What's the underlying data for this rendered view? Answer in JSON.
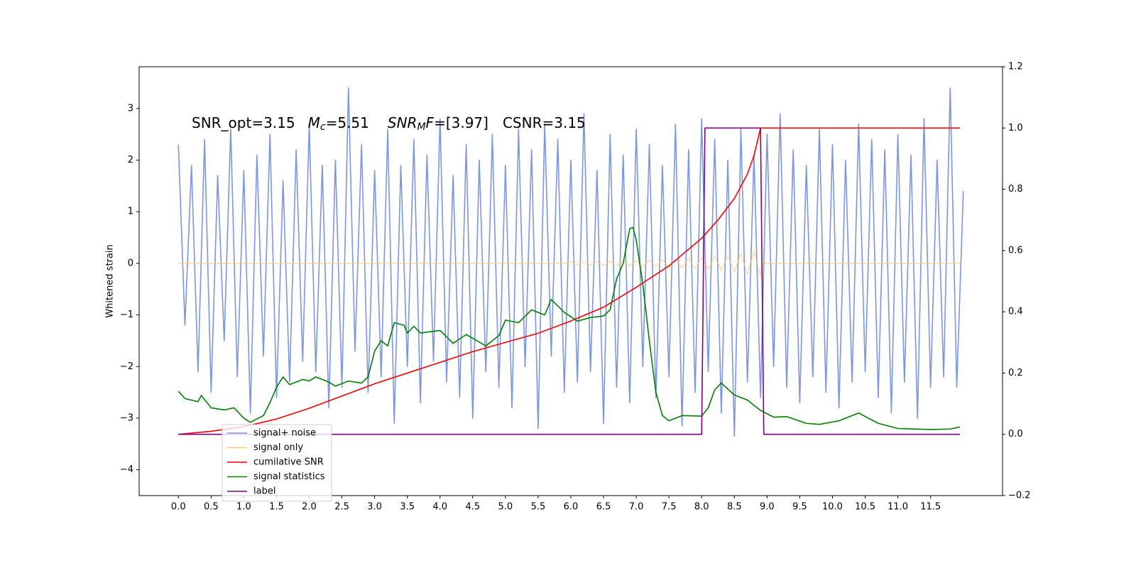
{
  "chart_data": {
    "type": "line",
    "annotation": [
      "SNR_opt=3.15",
      "M",
      "c",
      "=5.51",
      "SNR",
      "M",
      "F",
      "=[3.97]",
      "CSNR=3.15"
    ],
    "ylabel": "Whitened strain",
    "xlim": [
      -0.6,
      12.6
    ],
    "ylim": [
      -4.5,
      3.81
    ],
    "y2lim": [
      -0.2,
      1.2
    ],
    "xticks": [
      {
        "value": 0,
        "label": "0.0"
      },
      0.5,
      {
        "value": 1,
        "label": "1.0"
      },
      1.5,
      {
        "value": 2,
        "label": "2.0"
      },
      2.5,
      {
        "value": 3,
        "label": "3.0"
      },
      3.5,
      {
        "value": 4,
        "label": "4.0"
      },
      4.5,
      {
        "value": 5,
        "label": "5.0"
      },
      5.5,
      {
        "value": 6,
        "label": "6.0"
      },
      6.5,
      {
        "value": 7,
        "label": "7.0"
      },
      7.5,
      {
        "value": 8,
        "label": "8.0"
      },
      8.5,
      {
        "value": 9,
        "label": "9.0"
      },
      9.5,
      {
        "value": 10,
        "label": "10.0"
      },
      10.5,
      {
        "value": 11,
        "label": "11.0"
      },
      11.5
    ],
    "yticks": [
      {
        "value": -4,
        "label": "−4"
      },
      {
        "value": -3,
        "label": "−3"
      },
      {
        "value": -2,
        "label": "−2"
      },
      {
        "value": -1,
        "label": "−1"
      },
      0,
      1,
      2,
      3
    ],
    "y2ticks": [
      {
        "value": -0.2,
        "label": "−0.2"
      },
      {
        "value": 0,
        "label": "0.0"
      },
      0.2,
      0.4,
      0.6,
      0.8,
      {
        "value": 1,
        "label": "1.0"
      },
      1.2
    ],
    "legend": "lower left",
    "series": [
      {
        "name": "signal+ noise",
        "color": "#7b96e8",
        "x": [
          0,
          0.1,
          0.2,
          0.3,
          0.4,
          0.5,
          0.6,
          0.7,
          0.8,
          0.9,
          1,
          1.1,
          1.2,
          1.3,
          1.4,
          1.5,
          1.6,
          1.7,
          1.8,
          1.9,
          2,
          2.1,
          2.2,
          2.3,
          2.4,
          2.5,
          2.6,
          2.7,
          2.8,
          2.9,
          3,
          3.1,
          3.2,
          3.3,
          3.4,
          3.5,
          3.6,
          3.7,
          3.8,
          3.9,
          4,
          4.1,
          4.2,
          4.3,
          4.4,
          4.5,
          4.6,
          4.7,
          4.8,
          4.9,
          5,
          5.1,
          5.2,
          5.3,
          5.4,
          5.5,
          5.6,
          5.7,
          5.8,
          5.9,
          6,
          6.1,
          6.2,
          6.3,
          6.4,
          6.5,
          6.6,
          6.7,
          6.8,
          6.9,
          7,
          7.1,
          7.2,
          7.3,
          7.4,
          7.5,
          7.6,
          7.7,
          7.8,
          7.9,
          8,
          8.1,
          8.2,
          8.3,
          8.4,
          8.5,
          8.6,
          8.7,
          8.8,
          8.9,
          9,
          9.1,
          9.2,
          9.3,
          9.4,
          9.5,
          9.6,
          9.7,
          9.8,
          9.9,
          10,
          10.1,
          10.2,
          10.3,
          10.4,
          10.5,
          10.6,
          10.7,
          10.8,
          10.9,
          11,
          11.1,
          11.2,
          11.3,
          11.4,
          11.5,
          11.6,
          11.7,
          11.8,
          11.9,
          12
        ],
        "values": [
          2.3,
          -1.2,
          1.9,
          -2.1,
          2.4,
          -2.5,
          1.7,
          -1.5,
          2.6,
          -2.2,
          1.8,
          -2.9,
          2.1,
          -1.8,
          2.5,
          -2.6,
          1.6,
          -2.3,
          2.2,
          -1.9,
          2.7,
          -2.1,
          1.9,
          -2.8,
          2.0,
          -2.4,
          3.4,
          -1.7,
          2.3,
          -2.5,
          1.8,
          -2.2,
          2.6,
          -3.1,
          1.9,
          -2.0,
          2.4,
          -2.7,
          2.1,
          -1.9,
          2.8,
          -2.3,
          1.7,
          -2.6,
          2.3,
          -3.0,
          2.0,
          -2.1,
          2.5,
          -2.4,
          1.9,
          -2.8,
          2.6,
          -2.0,
          2.2,
          -3.2,
          2.7,
          -1.8,
          2.4,
          -2.5,
          2.0,
          -2.3,
          2.9,
          -2.1,
          1.8,
          -3.1,
          2.5,
          -2.4,
          2.1,
          -2.7,
          2.6,
          -2.0,
          2.3,
          -2.6,
          1.9,
          -2.2,
          2.7,
          -3.15,
          2.2,
          -2.5,
          2.8,
          -2.1,
          2.4,
          -2.9,
          2.0,
          -3.35,
          2.6,
          -2.3,
          2.1,
          -2.6,
          2.5,
          -2.0,
          2.9,
          -2.4,
          2.2,
          -2.7,
          1.9,
          -2.2,
          2.6,
          -2.5,
          2.3,
          -2.8,
          2.0,
          -2.3,
          2.7,
          -2.1,
          2.4,
          -2.6,
          2.2,
          -2.9,
          2.5,
          -2.3,
          2.1,
          -3.0,
          2.8,
          -2.4,
          2.0,
          -2.2,
          3.4,
          -2.4,
          1.4
        ]
      },
      {
        "name": "signal only",
        "color": "#ffc966",
        "x": [
          0,
          5.9,
          6,
          6.1,
          6.2,
          6.3,
          6.4,
          6.5,
          6.6,
          6.7,
          6.8,
          6.9,
          7,
          7.1,
          7.2,
          7.3,
          7.4,
          7.5,
          7.6,
          7.7,
          7.8,
          7.9,
          8,
          8.1,
          8.2,
          8.3,
          8.4,
          8.5,
          8.6,
          8.7,
          8.8,
          8.9,
          8.92,
          11.95
        ],
        "values": [
          0,
          0,
          0.03,
          -0.03,
          0.035,
          -0.035,
          0.04,
          -0.04,
          0.045,
          -0.045,
          0.05,
          -0.05,
          0.055,
          -0.06,
          0.065,
          -0.07,
          0.075,
          -0.08,
          0.085,
          -0.09,
          0.1,
          -0.1,
          0.11,
          -0.12,
          0.13,
          -0.14,
          0.15,
          -0.17,
          0.19,
          -0.21,
          0.24,
          -0.26,
          0,
          0
        ]
      },
      {
        "name": "cumilative SNR",
        "color": "#ff0000",
        "axis": "y2",
        "x": [
          0,
          0.5,
          1,
          1.5,
          2,
          2.5,
          3,
          3.5,
          4,
          4.5,
          5,
          5.5,
          6,
          6.5,
          7,
          7.5,
          8,
          8.25,
          8.5,
          8.7,
          8.8,
          8.9,
          8.95,
          11.95
        ],
        "values": [
          0,
          0.01,
          0.025,
          0.05,
          0.085,
          0.125,
          0.165,
          0.2,
          0.235,
          0.27,
          0.3,
          0.33,
          0.37,
          0.415,
          0.48,
          0.55,
          0.64,
          0.7,
          0.77,
          0.85,
          0.91,
          1.0,
          1.0,
          1.0
        ]
      },
      {
        "name": "signal statistics",
        "color": "#008000",
        "x": [
          0,
          0.1,
          0.3,
          0.35,
          0.5,
          0.7,
          0.85,
          1,
          1.1,
          1.3,
          1.4,
          1.5,
          1.6,
          1.7,
          1.9,
          2,
          2.1,
          2.3,
          2.4,
          2.6,
          2.8,
          2.9,
          3,
          3.1,
          3.2,
          3.3,
          3.45,
          3.5,
          3.6,
          3.7,
          4,
          4.2,
          4.4,
          4.7,
          4.9,
          5,
          5.2,
          5.4,
          5.6,
          5.7,
          5.9,
          6.1,
          6.3,
          6.5,
          6.6,
          6.7,
          6.8,
          6.9,
          6.95,
          7,
          7.1,
          7.2,
          7.3,
          7.4,
          7.5,
          7.7,
          8,
          8.1,
          8.2,
          8.3,
          8.5,
          8.7,
          8.9,
          9.1,
          9.3,
          9.6,
          9.8,
          10.1,
          10.4,
          10.7,
          11,
          11.5,
          11.8,
          11.95
        ],
        "values": [
          -2.48,
          -2.62,
          -2.68,
          -2.56,
          -2.8,
          -2.84,
          -2.8,
          -3.0,
          -3.08,
          -2.95,
          -2.7,
          -2.4,
          -2.2,
          -2.35,
          -2.25,
          -2.28,
          -2.2,
          -2.3,
          -2.38,
          -2.28,
          -2.32,
          -2.2,
          -1.7,
          -1.5,
          -1.6,
          -1.15,
          -1.2,
          -1.35,
          -1.22,
          -1.35,
          -1.3,
          -1.55,
          -1.38,
          -1.6,
          -1.4,
          -1.1,
          -1.15,
          -0.9,
          -1.0,
          -0.7,
          -0.95,
          -1.12,
          -1.05,
          -1.02,
          -0.9,
          -0.3,
          0.0,
          0.67,
          0.7,
          0.45,
          -0.4,
          -1.5,
          -2.5,
          -2.95,
          -3.05,
          -2.95,
          -2.96,
          -2.8,
          -2.45,
          -2.32,
          -2.55,
          -2.65,
          -2.85,
          -2.98,
          -2.97,
          -3.1,
          -3.12,
          -3.05,
          -2.9,
          -3.1,
          -3.2,
          -3.22,
          -3.21,
          -3.17
        ]
      },
      {
        "name": "label",
        "color": "#800080",
        "axis": "y2",
        "x": [
          0,
          8.0,
          8.05,
          8.9,
          8.95,
          11.95
        ],
        "values": [
          0,
          0,
          1,
          1,
          0,
          0
        ]
      }
    ]
  }
}
